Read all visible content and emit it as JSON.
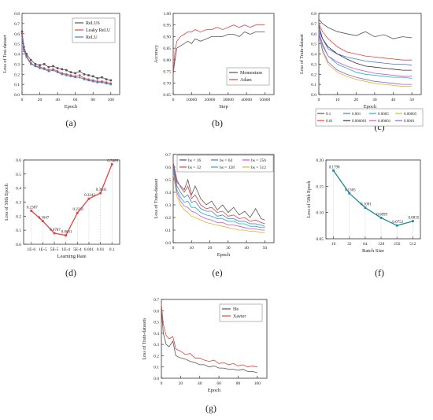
{
  "chart_data": [
    {
      "id": "a",
      "type": "line",
      "panel_label": "(a)",
      "xlabel": "Epoch",
      "ylabel": "Loss of Test-dataset",
      "xlim": [
        0,
        110
      ],
      "ylim": [
        0.0,
        0.8
      ],
      "xticks": [
        0,
        20,
        40,
        60,
        80,
        100
      ],
      "yticks": [
        0.0,
        0.1,
        0.2,
        0.3,
        0.4,
        0.5,
        0.6,
        0.7,
        0.8
      ],
      "legend": "top-right",
      "series": [
        {
          "name": "ReLU6",
          "color": "#555555",
          "marker": "square",
          "x": [
            0,
            2,
            5,
            10,
            15,
            20,
            25,
            30,
            35,
            40,
            45,
            50,
            55,
            60,
            65,
            70,
            75,
            80,
            85,
            90,
            95,
            100
          ],
          "y": [
            0.62,
            0.47,
            0.4,
            0.34,
            0.3,
            0.29,
            0.3,
            0.27,
            0.28,
            0.26,
            0.25,
            0.24,
            0.22,
            0.21,
            0.23,
            0.2,
            0.19,
            0.18,
            0.16,
            0.17,
            0.15,
            0.14
          ]
        },
        {
          "name": "Leaky ReLU",
          "color": "#e8423f",
          "marker": "circle",
          "x": [
            0,
            2,
            5,
            10,
            15,
            20,
            25,
            30,
            35,
            40,
            45,
            50,
            55,
            60,
            65,
            70,
            75,
            80,
            85,
            90,
            95,
            100
          ],
          "y": [
            0.6,
            0.45,
            0.38,
            0.31,
            0.28,
            0.27,
            0.26,
            0.24,
            0.25,
            0.23,
            0.21,
            0.2,
            0.19,
            0.18,
            0.19,
            0.16,
            0.15,
            0.14,
            0.13,
            0.13,
            0.12,
            0.11
          ]
        },
        {
          "name": "ReLU",
          "color": "#3b7fd6",
          "marker": "triangle",
          "x": [
            0,
            2,
            5,
            10,
            15,
            20,
            25,
            30,
            35,
            40,
            45,
            50,
            55,
            60,
            65,
            70,
            75,
            80,
            85,
            90,
            95,
            100
          ],
          "y": [
            0.58,
            0.43,
            0.37,
            0.3,
            0.28,
            0.26,
            0.25,
            0.23,
            0.24,
            0.22,
            0.2,
            0.19,
            0.18,
            0.17,
            0.17,
            0.15,
            0.14,
            0.13,
            0.12,
            0.12,
            0.11,
            0.1
          ]
        }
      ]
    },
    {
      "id": "b",
      "type": "line",
      "panel_label": "(b)",
      "xlabel": "Step",
      "ylabel": "Accuracy",
      "xlim": [
        0,
        55000
      ],
      "ylim": [
        0.65,
        1.0
      ],
      "xticks": [
        0,
        10000,
        20000,
        30000,
        40000,
        50000
      ],
      "yticks": [
        0.65,
        0.7,
        0.75,
        0.8,
        0.85,
        0.9,
        0.95,
        1.0
      ],
      "legend": "bottom-right",
      "series": [
        {
          "name": "Momentum",
          "color": "#555555",
          "x": [
            0,
            1000,
            2000,
            4000,
            6000,
            8000,
            10000,
            12000,
            15000,
            18000,
            21000,
            24000,
            27000,
            30000,
            33000,
            36000,
            39000,
            42000,
            45000,
            48000,
            50000
          ],
          "y": [
            0.74,
            0.8,
            0.85,
            0.86,
            0.87,
            0.88,
            0.87,
            0.89,
            0.88,
            0.89,
            0.9,
            0.9,
            0.9,
            0.91,
            0.91,
            0.9,
            0.92,
            0.91,
            0.92,
            0.92,
            0.92
          ]
        },
        {
          "name": "Adam",
          "color": "#e8423f",
          "x": [
            0,
            1000,
            2000,
            4000,
            6000,
            8000,
            10000,
            12000,
            15000,
            18000,
            21000,
            24000,
            27000,
            30000,
            33000,
            36000,
            39000,
            42000,
            45000,
            48000,
            50000
          ],
          "y": [
            0.73,
            0.84,
            0.88,
            0.9,
            0.91,
            0.92,
            0.92,
            0.93,
            0.92,
            0.93,
            0.93,
            0.94,
            0.93,
            0.94,
            0.95,
            0.94,
            0.95,
            0.94,
            0.95,
            0.95,
            0.95
          ]
        }
      ]
    },
    {
      "id": "c",
      "type": "line",
      "panel_label": "(c)",
      "xlabel": "Epoch",
      "ylabel": "Loss of Train-dataset",
      "xlim": [
        0,
        55
      ],
      "ylim": [
        0.0,
        0.8
      ],
      "xticks": [
        0,
        10,
        20,
        30,
        40,
        50
      ],
      "yticks": [
        0.0,
        0.1,
        0.2,
        0.3,
        0.4,
        0.5,
        0.6,
        0.7,
        0.8
      ],
      "legend": "below",
      "series": [
        {
          "name": "0.1",
          "color": "#555555",
          "x": [
            0,
            2,
            5,
            10,
            15,
            20,
            25,
            30,
            35,
            40,
            45,
            50
          ],
          "y": [
            0.74,
            0.7,
            0.66,
            0.62,
            0.6,
            0.58,
            0.62,
            0.57,
            0.59,
            0.55,
            0.57,
            0.56
          ]
        },
        {
          "name": "0.001",
          "color": "#3b7fd6",
          "x": [
            0,
            2,
            5,
            10,
            15,
            20,
            25,
            30,
            35,
            40,
            45,
            50
          ],
          "y": [
            0.64,
            0.55,
            0.45,
            0.4,
            0.37,
            0.35,
            0.33,
            0.32,
            0.31,
            0.3,
            0.3,
            0.29
          ]
        },
        {
          "name": "0.0005",
          "color": "#19b3c8",
          "x": [
            0,
            2,
            5,
            10,
            15,
            20,
            25,
            30,
            35,
            40,
            45,
            50
          ],
          "y": [
            0.62,
            0.5,
            0.38,
            0.3,
            0.26,
            0.22,
            0.2,
            0.19,
            0.18,
            0.17,
            0.17,
            0.16
          ]
        },
        {
          "name": "0.00005",
          "color": "#e5b32a",
          "x": [
            0,
            2,
            5,
            10,
            15,
            20,
            25,
            30,
            35,
            40,
            45,
            50
          ],
          "y": [
            0.6,
            0.42,
            0.3,
            0.22,
            0.18,
            0.15,
            0.13,
            0.11,
            0.1,
            0.09,
            0.08,
            0.08
          ]
        },
        {
          "name": "0.01",
          "color": "#e8423f",
          "x": [
            0,
            2,
            5,
            10,
            15,
            20,
            25,
            30,
            35,
            40,
            45,
            50
          ],
          "y": [
            0.7,
            0.62,
            0.55,
            0.47,
            0.42,
            0.4,
            0.38,
            0.37,
            0.36,
            0.35,
            0.34,
            0.34
          ]
        },
        {
          "name": "0.000001",
          "color": "#333333",
          "x": [
            0,
            2,
            5,
            10,
            15,
            20,
            25,
            30,
            35,
            40,
            45,
            50
          ],
          "y": [
            0.68,
            0.55,
            0.47,
            0.4,
            0.35,
            0.31,
            0.28,
            0.27,
            0.26,
            0.25,
            0.24,
            0.24
          ]
        },
        {
          "name": "0.00001",
          "color": "#d24fd6",
          "x": [
            0,
            2,
            5,
            10,
            15,
            20,
            25,
            30,
            35,
            40,
            45,
            50
          ],
          "y": [
            0.62,
            0.48,
            0.38,
            0.32,
            0.28,
            0.25,
            0.23,
            0.21,
            0.2,
            0.19,
            0.18,
            0.18
          ]
        },
        {
          "name": "0.0001",
          "color": "#7b6bd8",
          "x": [
            0,
            2,
            5,
            10,
            15,
            20,
            25,
            30,
            35,
            40,
            45,
            50
          ],
          "y": [
            0.6,
            0.44,
            0.32,
            0.24,
            0.2,
            0.17,
            0.15,
            0.13,
            0.12,
            0.11,
            0.1,
            0.1
          ]
        }
      ]
    },
    {
      "id": "d",
      "type": "line",
      "panel_label": "(d)",
      "xlabel": "Learning Rate",
      "ylabel": "Loss of 50th Epoch",
      "categories": [
        "1E-6",
        "1E-5",
        "5E-5",
        "1E-4",
        "5E-4",
        "0.001",
        "0.01",
        "0.1"
      ],
      "ylim": [
        0.0,
        0.6
      ],
      "yticks": [
        0.0,
        0.1,
        0.2,
        0.3,
        0.4,
        0.5,
        0.6
      ],
      "series": [
        {
          "name": "",
          "color": "#e8423f",
          "values": [
            0.2387,
            0.1647,
            0.0787,
            0.0631,
            0.2231,
            0.3242,
            0.3641,
            0.5689
          ],
          "labels": [
            "0.2387",
            "0.1647",
            "0.0787",
            "0.0631",
            "0.2231",
            "0.3242",
            "0.3641",
            "0.5689"
          ]
        }
      ]
    },
    {
      "id": "e",
      "type": "line",
      "panel_label": "(e)",
      "xlabel": "Epoch",
      "ylabel": "Loss of Train-dataset",
      "xlim": [
        0,
        55
      ],
      "ylim": [
        0.0,
        0.7
      ],
      "xticks": [
        0,
        10,
        20,
        30,
        40,
        50
      ],
      "yticks": [
        0.0,
        0.1,
        0.2,
        0.3,
        0.4,
        0.5,
        0.6,
        0.7
      ],
      "legend": "top-right",
      "series": [
        {
          "name": "bs = 16",
          "color": "#555555",
          "x": [
            0,
            2,
            4,
            6,
            8,
            10,
            12,
            15,
            18,
            21,
            24,
            27,
            30,
            33,
            36,
            39,
            42,
            45,
            48,
            50
          ],
          "y": [
            0.62,
            0.48,
            0.45,
            0.42,
            0.5,
            0.38,
            0.45,
            0.35,
            0.3,
            0.33,
            0.26,
            0.3,
            0.24,
            0.28,
            0.22,
            0.25,
            0.2,
            0.27,
            0.19,
            0.18
          ]
        },
        {
          "name": "bs = 32",
          "color": "#e8423f",
          "x": [
            0,
            2,
            4,
            6,
            8,
            10,
            12,
            15,
            18,
            21,
            24,
            27,
            30,
            33,
            36,
            39,
            42,
            45,
            48,
            50
          ],
          "y": [
            0.64,
            0.5,
            0.44,
            0.4,
            0.45,
            0.35,
            0.38,
            0.3,
            0.27,
            0.28,
            0.24,
            0.25,
            0.21,
            0.22,
            0.19,
            0.2,
            0.17,
            0.18,
            0.16,
            0.15
          ]
        },
        {
          "name": "bs = 64",
          "color": "#3b7fd6",
          "x": [
            0,
            2,
            4,
            6,
            8,
            10,
            12,
            15,
            18,
            21,
            24,
            27,
            30,
            33,
            36,
            39,
            42,
            45,
            48,
            50
          ],
          "y": [
            0.6,
            0.45,
            0.4,
            0.36,
            0.38,
            0.32,
            0.33,
            0.27,
            0.25,
            0.25,
            0.21,
            0.22,
            0.19,
            0.19,
            0.17,
            0.17,
            0.15,
            0.15,
            0.14,
            0.13
          ]
        },
        {
          "name": "bs = 128",
          "color": "#19b3c8",
          "x": [
            0,
            2,
            4,
            6,
            8,
            10,
            12,
            15,
            18,
            21,
            24,
            27,
            30,
            33,
            36,
            39,
            42,
            45,
            48,
            50
          ],
          "y": [
            0.58,
            0.42,
            0.36,
            0.32,
            0.33,
            0.28,
            0.28,
            0.24,
            0.22,
            0.21,
            0.19,
            0.19,
            0.17,
            0.17,
            0.15,
            0.15,
            0.13,
            0.13,
            0.12,
            0.12
          ]
        },
        {
          "name": "bs = 256",
          "color": "#d24fd6",
          "x": [
            0,
            2,
            4,
            6,
            8,
            10,
            12,
            15,
            18,
            21,
            24,
            27,
            30,
            33,
            36,
            39,
            42,
            45,
            48,
            50
          ],
          "y": [
            0.56,
            0.4,
            0.33,
            0.29,
            0.28,
            0.25,
            0.24,
            0.21,
            0.19,
            0.18,
            0.16,
            0.16,
            0.14,
            0.14,
            0.13,
            0.12,
            0.11,
            0.11,
            0.1,
            0.1
          ]
        },
        {
          "name": "bs = 512",
          "color": "#e5b32a",
          "x": [
            0,
            2,
            4,
            6,
            8,
            10,
            12,
            15,
            18,
            21,
            24,
            27,
            30,
            33,
            36,
            39,
            42,
            45,
            48,
            50
          ],
          "y": [
            0.54,
            0.37,
            0.3,
            0.26,
            0.24,
            0.21,
            0.2,
            0.18,
            0.16,
            0.15,
            0.14,
            0.13,
            0.12,
            0.11,
            0.1,
            0.1,
            0.09,
            0.09,
            0.08,
            0.08
          ]
        }
      ]
    },
    {
      "id": "f",
      "type": "line",
      "panel_label": "(f)",
      "xlabel": "Batch Size",
      "ylabel": "Loss of 50th Epoch",
      "categories": [
        "16",
        "32",
        "64",
        "128",
        "256",
        "512"
      ],
      "ylim": [
        0.05,
        0.2
      ],
      "yticks": [
        0.05,
        0.1,
        0.15,
        0.2
      ],
      "series": [
        {
          "name": "",
          "color": "#1f8aa0",
          "values": [
            0.1798,
            0.1365,
            0.1091,
            0.0899,
            0.0752,
            0.0835
          ],
          "labels": [
            "0.1798",
            "0.1365",
            "0.1091",
            "0.0899",
            "0.0752",
            "0.0835"
          ]
        }
      ]
    },
    {
      "id": "g",
      "type": "line",
      "panel_label": "(g)",
      "xlabel": "Epoch",
      "ylabel": "Loss of Train-datasets",
      "xlim": [
        0,
        110
      ],
      "ylim": [
        0.0,
        0.7
      ],
      "xticks": [
        0,
        20,
        40,
        60,
        80,
        100
      ],
      "yticks": [
        0.0,
        0.1,
        0.2,
        0.3,
        0.4,
        0.5,
        0.6,
        0.7
      ],
      "legend": "top-right",
      "series": [
        {
          "name": "He",
          "color": "#555555",
          "x": [
            0,
            2,
            5,
            8,
            12,
            15,
            20,
            25,
            30,
            35,
            40,
            45,
            50,
            55,
            60,
            65,
            70,
            75,
            80,
            85,
            90,
            95,
            100
          ],
          "y": [
            0.62,
            0.4,
            0.3,
            0.28,
            0.33,
            0.2,
            0.18,
            0.17,
            0.15,
            0.14,
            0.12,
            0.12,
            0.1,
            0.11,
            0.09,
            0.09,
            0.08,
            0.08,
            0.07,
            0.08,
            0.06,
            0.06,
            0.05
          ]
        },
        {
          "name": "Xavier",
          "color": "#e8423f",
          "x": [
            0,
            2,
            5,
            8,
            12,
            15,
            20,
            25,
            30,
            35,
            40,
            45,
            50,
            55,
            60,
            65,
            70,
            75,
            80,
            85,
            90,
            95,
            100
          ],
          "y": [
            0.66,
            0.48,
            0.38,
            0.35,
            0.37,
            0.26,
            0.24,
            0.21,
            0.22,
            0.18,
            0.18,
            0.16,
            0.15,
            0.16,
            0.13,
            0.14,
            0.12,
            0.13,
            0.11,
            0.12,
            0.1,
            0.11,
            0.1
          ]
        }
      ]
    }
  ]
}
